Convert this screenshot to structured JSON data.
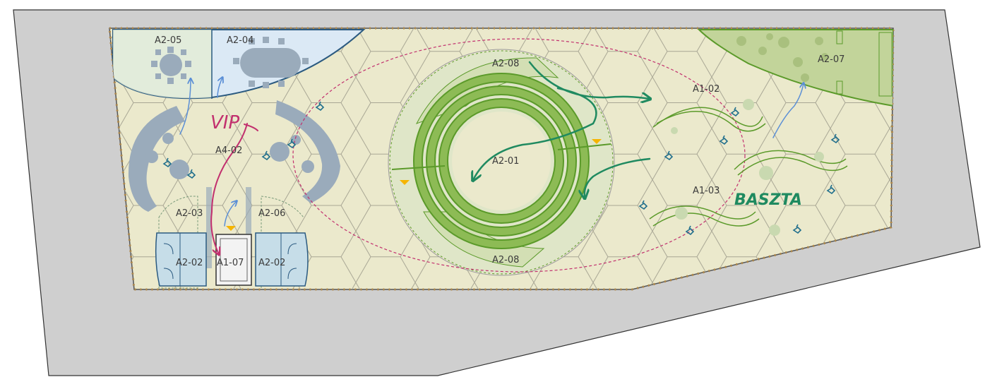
{
  "colors": {
    "site": "#cfcfcf",
    "floor": "#ebe9cc",
    "grass": "#b8cc8a",
    "green_dark": "#5b9a2a",
    "water": "#dbe9f5",
    "fixture": "#9aabbb",
    "pen_green": "#1f8a60",
    "pen_pink": "#c2306e",
    "pen_blue": "#5b8fd6",
    "people": "#1f6e8c",
    "marker": "#f5b400"
  },
  "rooms": {
    "a2_05": "A2-05",
    "a2_04": "A2-04",
    "a2_08_top": "A2-08",
    "a2_07": "A2-07",
    "a1_02": "A1-02",
    "a4_02": "A4-02",
    "a2_01": "A2-01",
    "a1_03": "A1-03",
    "a2_03": "A2-03",
    "a2_06": "A2-06",
    "a2_02_left": "A2-02",
    "a1_07": "A1-07",
    "a2_02_right": "A2-02",
    "a2_08_bottom": "A2-08"
  },
  "annotations": {
    "vip": "VIP",
    "baszta": "BASZTA"
  },
  "icons": [
    "person-icon",
    "arrow-icon"
  ]
}
